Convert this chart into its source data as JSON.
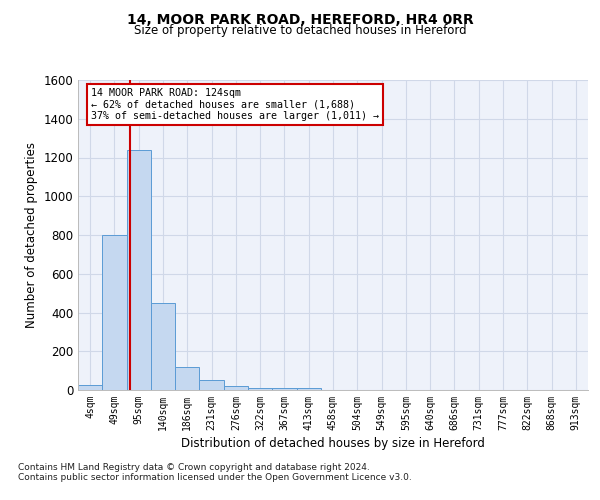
{
  "title1": "14, MOOR PARK ROAD, HEREFORD, HR4 0RR",
  "title2": "Size of property relative to detached houses in Hereford",
  "xlabel": "Distribution of detached houses by size in Hereford",
  "ylabel": "Number of detached properties",
  "categories": [
    "4sqm",
    "49sqm",
    "95sqm",
    "140sqm",
    "186sqm",
    "231sqm",
    "276sqm",
    "322sqm",
    "367sqm",
    "413sqm",
    "458sqm",
    "504sqm",
    "549sqm",
    "595sqm",
    "640sqm",
    "686sqm",
    "731sqm",
    "777sqm",
    "822sqm",
    "868sqm",
    "913sqm"
  ],
  "values": [
    25,
    800,
    1240,
    450,
    120,
    50,
    20,
    10,
    10,
    10,
    0,
    0,
    0,
    0,
    0,
    0,
    0,
    0,
    0,
    0,
    0
  ],
  "bar_color": "#c5d8f0",
  "bar_edge_color": "#5b9bd5",
  "annotation_line1": "14 MOOR PARK ROAD: 124sqm",
  "annotation_line2": "← 62% of detached houses are smaller (1,688)",
  "annotation_line3": "37% of semi-detached houses are larger (1,011) →",
  "marker_line_color": "#cc0000",
  "ylim": [
    0,
    1600
  ],
  "yticks": [
    0,
    200,
    400,
    600,
    800,
    1000,
    1200,
    1400,
    1600
  ],
  "footnote1": "Contains HM Land Registry data © Crown copyright and database right 2024.",
  "footnote2": "Contains public sector information licensed under the Open Government Licence v3.0.",
  "grid_color": "#d0d8e8",
  "bg_color": "#eef2fa",
  "fig_bg_color": "#ffffff"
}
